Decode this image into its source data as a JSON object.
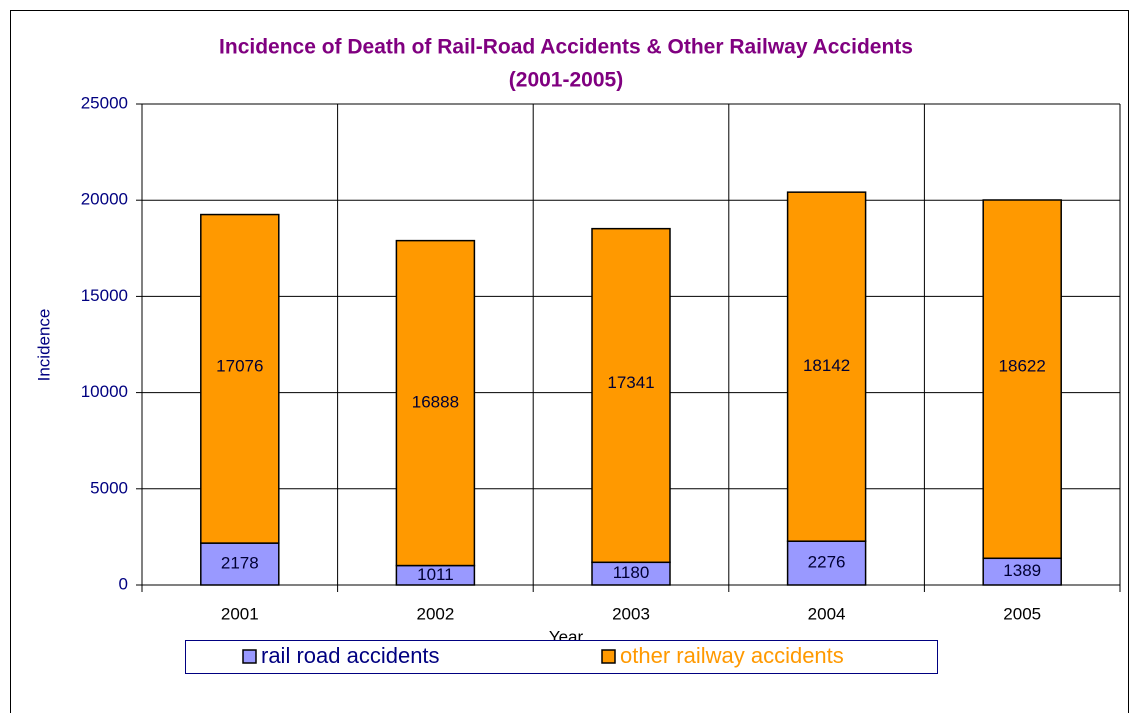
{
  "chart_data": {
    "type": "stacked_bar",
    "title": "Incidence of Death of Rail-Road Accidents & Other Railway Accidents",
    "subtitle": "(2001-2005)",
    "x_label": "Year",
    "y_label": "Incidence",
    "categories": [
      "2001",
      "2002",
      "2003",
      "2004",
      "2005"
    ],
    "series": [
      {
        "name": "rail road accidents",
        "color": "#9999ff",
        "legend_text_color": "#000080",
        "values": [
          2178,
          1011,
          1180,
          2276,
          1389
        ]
      },
      {
        "name": "other railway accidents",
        "color": "#ff9900",
        "legend_text_color": "#ff9900",
        "values": [
          17076,
          16888,
          17341,
          18142,
          18622
        ]
      }
    ],
    "ylim": [
      0,
      25000
    ],
    "yticks": [
      0,
      5000,
      10000,
      15000,
      20000,
      25000
    ],
    "grid": true,
    "legend": "bottom"
  }
}
